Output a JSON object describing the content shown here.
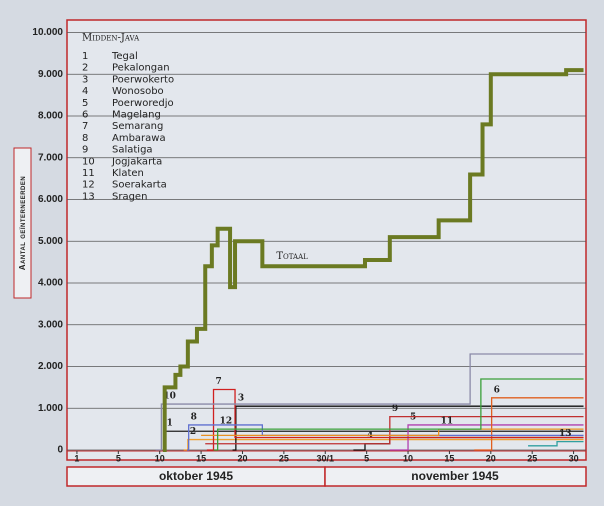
{
  "chart_data": {
    "type": "step",
    "title": "Midden-Java",
    "y_label": "Aantal geïnterneerden",
    "months": [
      "oktober 1945",
      "november 1945"
    ],
    "xlim": [
      -1.2,
      61.5
    ],
    "xticks": [
      {
        "value": 0,
        "label": "1"
      },
      5,
      10,
      15,
      20,
      25,
      {
        "value": 30,
        "label": "30/1"
      },
      {
        "value": 35,
        "label": "5"
      },
      {
        "value": 40,
        "label": "10"
      },
      {
        "value": 45,
        "label": "15"
      },
      {
        "value": 50,
        "label": "20"
      },
      {
        "value": 55,
        "label": "25"
      },
      {
        "value": 60,
        "label": "30"
      }
    ],
    "ylim": [
      0,
      10300
    ],
    "yticks": [
      0,
      {
        "value": 1000,
        "label": "1.000"
      },
      {
        "value": 2000,
        "label": "2.000"
      },
      {
        "value": 3000,
        "label": "3.000"
      },
      {
        "value": 4000,
        "label": "4.000"
      },
      {
        "value": 5000,
        "label": "5.000"
      },
      {
        "value": 6000,
        "label": "6.000"
      },
      {
        "value": 7000,
        "label": "7.000"
      },
      {
        "value": 8000,
        "label": "8.000"
      },
      {
        "value": 9000,
        "label": "9.000"
      },
      {
        "value": 10000,
        "label": "10.000"
      }
    ],
    "grid": true,
    "total": {
      "name": "Totaal",
      "color": "#6b7a22",
      "x": [
        10.4,
        10.6,
        11.9,
        12.5,
        13.4,
        14.5,
        15.5,
        16.3,
        17,
        18.5,
        19.1,
        22.4,
        34.8,
        37.8,
        43.7,
        47.5,
        49,
        50,
        59.1,
        61.2
      ],
      "values": [
        0,
        1500,
        1800,
        2000,
        2600,
        2900,
        4400,
        4900,
        5300,
        3900,
        5000,
        4400,
        4550,
        5100,
        5500,
        6600,
        7800,
        9000,
        9100,
        9100
      ]
    },
    "series": [
      {
        "label": "1",
        "name": "Tegal",
        "color": "#222222",
        "x": [
          10.4,
          10.6,
          61.2
        ],
        "values": [
          0,
          450,
          450
        ]
      },
      {
        "label": "2",
        "name": "Pekalongan",
        "color": "#f0a030",
        "x": [
          12.9,
          13.4,
          61.2
        ],
        "values": [
          0,
          250,
          250
        ]
      },
      {
        "label": "3",
        "name": "Poerwokerto",
        "color": "#111111",
        "x": [
          18.8,
          19.2,
          61.2
        ],
        "values": [
          0,
          1050,
          1050
        ]
      },
      {
        "label": "4",
        "name": "Wonosobo",
        "color": "#111111",
        "x": [
          33.4,
          34.8,
          37.8,
          61.2
        ],
        "values": [
          0,
          150,
          300,
          300
        ]
      },
      {
        "label": "5",
        "name": "Poerworedjo",
        "color": "#b040b0",
        "x": [
          37.8,
          40,
          61.2
        ],
        "values": [
          0,
          600,
          600
        ]
      },
      {
        "label": "6",
        "name": "Magelang",
        "color": "#e06020",
        "x": [
          48,
          50.1,
          61.2
        ],
        "values": [
          0,
          1250,
          1250
        ]
      },
      {
        "label": "7",
        "name": "Semarang",
        "color": "#d02020",
        "x": [
          15.7,
          16.5,
          19.1,
          61.2
        ],
        "values": [
          0,
          1450,
          300,
          300
        ]
      },
      {
        "label": "8",
        "name": "Ambarawa",
        "color": "#6070d0",
        "x": [
          13.3,
          13.5,
          22.4,
          61.2
        ],
        "values": [
          0,
          600,
          350,
          350
        ]
      },
      {
        "label": "9",
        "name": "Salatiga",
        "color": "#c03030",
        "x": [
          15.5,
          37.8,
          61.2
        ],
        "values": [
          150,
          800,
          800
        ]
      },
      {
        "label": "10",
        "name": "Jogjakarta",
        "color": "#8a8aa8",
        "x": [
          9.5,
          10.2,
          47.5,
          61.2
        ],
        "values": [
          0,
          1100,
          2300,
          2300
        ]
      },
      {
        "label": "11",
        "name": "Klaten",
        "color": "#e89020",
        "x": [
          15,
          43.7,
          61.2
        ],
        "values": [
          350,
          500,
          500
        ]
      },
      {
        "label": "12",
        "name": "Soerakarta",
        "color": "#3aa03a",
        "x": [
          16.5,
          17,
          48.8,
          61.2
        ],
        "values": [
          0,
          500,
          1700,
          1700
        ]
      },
      {
        "label": "13",
        "name": "Sragen",
        "color": "#30a0a0",
        "x": [
          54.5,
          58,
          61.2
        ],
        "values": [
          100,
          200,
          200
        ]
      }
    ]
  }
}
